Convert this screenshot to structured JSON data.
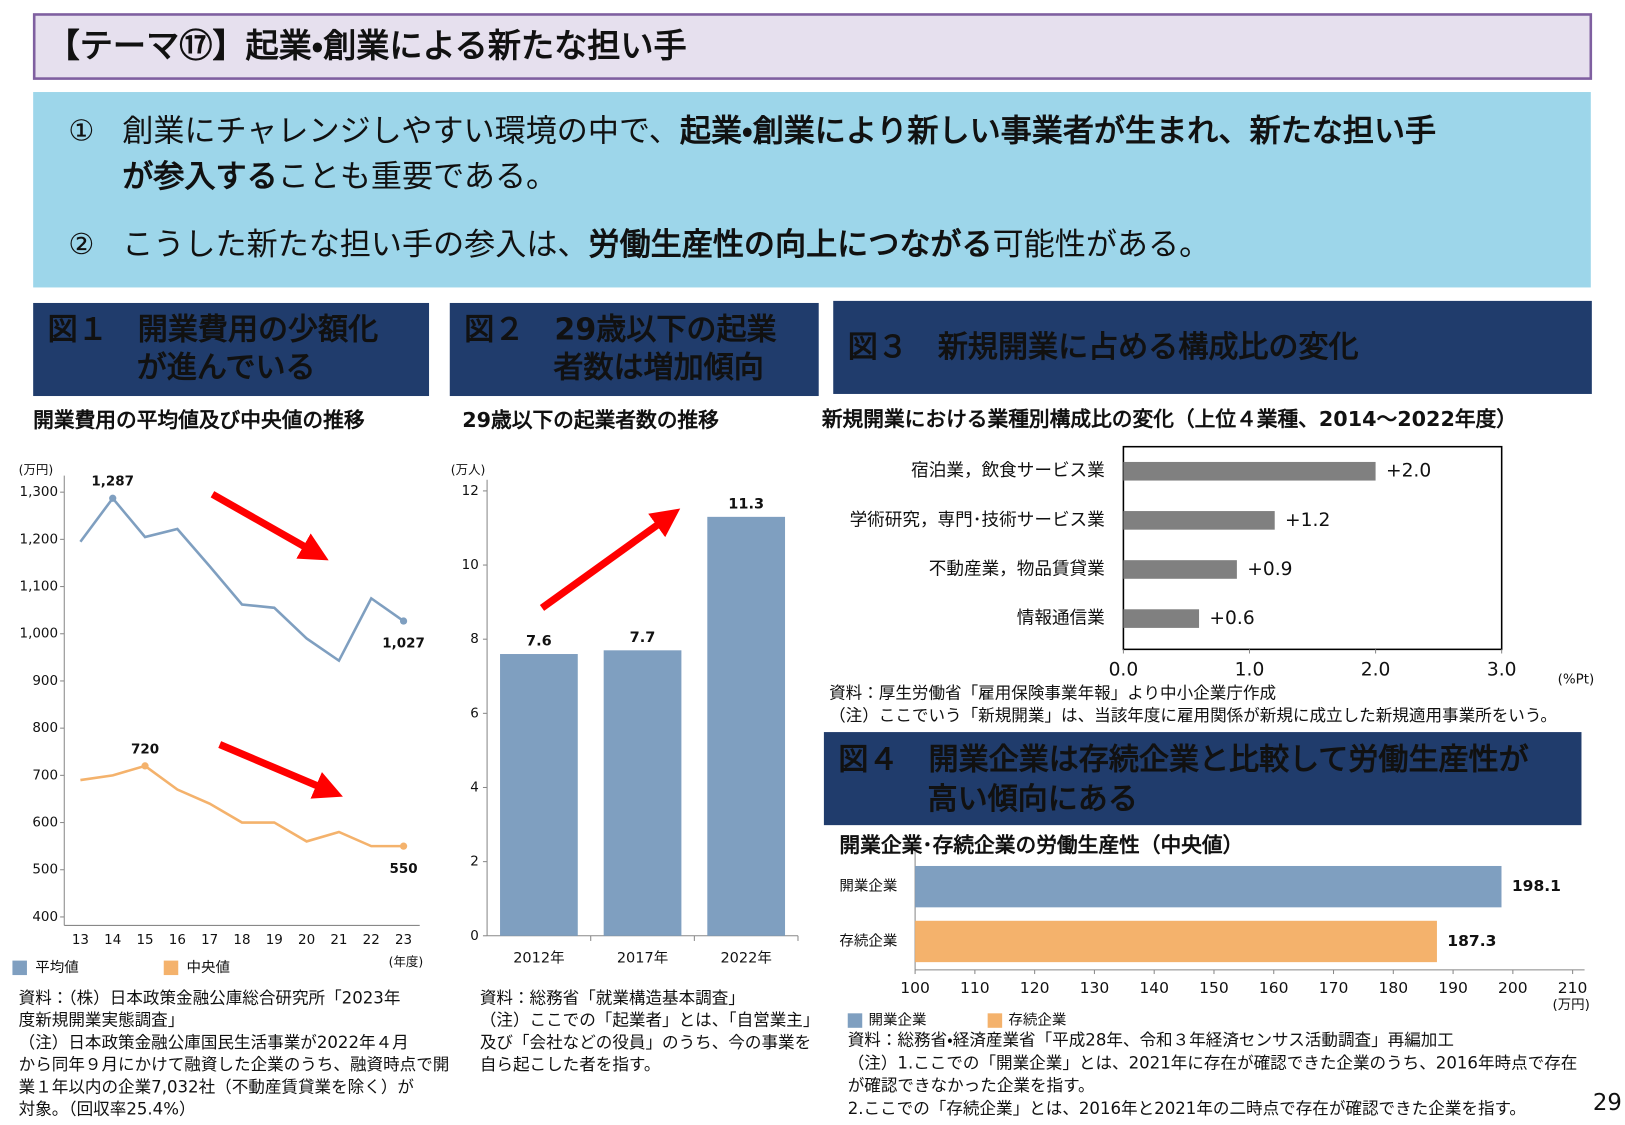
{
  "header": {
    "title": "【テーマ⑰】起業・創業による新たな担い手"
  },
  "points": [
    {
      "marker": "①",
      "lines": [
        [
          {
            "text": "創業にチャレンジしやすい環境の中で、",
            "bold": false
          },
          {
            "text": "起業・創業により新しい事業者が生まれ、新たな担い手",
            "bold": true
          }
        ],
        [
          {
            "text": "が参入する",
            "bold": true
          },
          {
            "text": "ことも重要である。",
            "bold": false
          }
        ]
      ]
    },
    {
      "marker": "②",
      "lines": [
        [
          {
            "text": "こうした新たな担い手の参入は、",
            "bold": false
          },
          {
            "text": "労働生産性の向上につながる",
            "bold": true
          },
          {
            "text": "可能性がある。",
            "bold": false
          }
        ]
      ]
    }
  ],
  "chart_data": [
    {
      "type": "line",
      "heading": [
        "図１　開業費用の少額化",
        "が進んでいる"
      ],
      "title": "開業費用の平均値及び中央値の推移",
      "y_unit": "(万円)",
      "x_unit": "(年度)",
      "categories": [
        "13",
        "14",
        "15",
        "16",
        "17",
        "18",
        "19",
        "20",
        "21",
        "22",
        "23"
      ],
      "series": [
        {
          "name": "平均値",
          "color": "#7f9fc0",
          "values": [
            1195,
            1287,
            1205,
            1222,
            1143,
            1062,
            1055,
            990,
            943,
            1075,
            1027
          ],
          "value_labels": [
            null,
            "1,287",
            null,
            null,
            null,
            null,
            null,
            null,
            null,
            null,
            "1,027"
          ]
        },
        {
          "name": "中央値",
          "color": "#f4b26c",
          "values": [
            690,
            700,
            720,
            670,
            640,
            600,
            600,
            560,
            580,
            550,
            550
          ],
          "value_labels": [
            null,
            null,
            "720",
            null,
            null,
            null,
            null,
            null,
            null,
            null,
            "550"
          ]
        }
      ],
      "ylim": [
        382,
        1335
      ],
      "yticks": [
        400,
        500,
        600,
        700,
        800,
        900,
        {
          "value": 1000,
          "label": "1,000"
        },
        {
          "value": 1100,
          "label": "1,100"
        },
        {
          "value": 1200,
          "label": "1,200"
        },
        {
          "value": 1300,
          "label": "1,300"
        }
      ],
      "grid": false,
      "legend": "bottom-left",
      "notes": [
        "資料：（株）日本政策金融公庫総合研究所「2023年",
        "度新規開業実態調査」",
        "（注）日本政策金融公庫国民生活事業が2022年４月",
        "から同年９月にかけて融資した企業のうち、融資時点で開",
        "業１年以内の企業7,032社（不動産賃貸業を除く）が",
        "対象。（回収率25.4%）"
      ]
    },
    {
      "type": "bar",
      "heading": [
        "図２　29歳以下の起業",
        "者数は増加傾向"
      ],
      "title": "29歳以下の起業者数の推移",
      "y_unit": "(万人)",
      "categories": [
        "2012年",
        "2017年",
        "2022年"
      ],
      "values": [
        7.6,
        7.7,
        11.3
      ],
      "color": "#7f9fc0",
      "data_labels": true,
      "ylim": [
        0,
        12.3
      ],
      "yticks": [
        0,
        2,
        4,
        6,
        8,
        10,
        12
      ],
      "grid": false,
      "notes": [
        "資料：総務省「就業構造基本調査」",
        "（注）ここでの「起業者」とは、「自営業主」",
        "及び「会社などの役員」のうち、今の事業を",
        "自ら起こした者を指す。"
      ]
    },
    {
      "type": "barh",
      "heading": [
        "図３　新規開業に占める構成比の変化"
      ],
      "title": "新規開業における業種別構成比の変化（上位４業種、2014～2022年度）",
      "x_unit": "(%Pt)",
      "categories": [
        "宿泊業，飲食サービス業",
        "学術研究，専門･技術サービス業",
        "不動産業，物品賃貸業",
        "情報通信業"
      ],
      "values": [
        2.0,
        1.2,
        0.9,
        0.6
      ],
      "value_labels": [
        "+2.0",
        "+1.2",
        "+0.9",
        "+0.6"
      ],
      "color": "#808080",
      "data_labels": true,
      "xlim": [
        0,
        3
      ],
      "xticks": [
        {
          "value": 0,
          "label": "0.0"
        },
        {
          "value": 1,
          "label": "1.0"
        },
        {
          "value": 2,
          "label": "2.0"
        },
        {
          "value": 3,
          "label": "3.0"
        }
      ],
      "grid": false,
      "notes": [
        "資料：厚生労働省「雇用保険事業年報」より中小企業庁作成",
        "（注）ここでいう「新規開業」は、当該年度に雇用関係が新規に成立した新規適用事業所をいう。"
      ]
    },
    {
      "type": "barh",
      "heading": [
        "図４　開業企業は存続企業と比較して労働生産性が",
        "高い傾向にある"
      ],
      "title": "開業企業･存続企業の労働生産性（中央値）",
      "x_unit": "(万円)",
      "categories": [
        "開業企業",
        "存続企業"
      ],
      "series": [
        {
          "name": "開業企業",
          "color": "#7f9fc0",
          "values": [
            198.1,
            null
          ]
        },
        {
          "name": "存続企業",
          "color": "#f4b26c",
          "values": [
            null,
            187.3
          ]
        }
      ],
      "data_labels": true,
      "xlim": [
        100,
        212
      ],
      "xticks": [
        100,
        110,
        120,
        130,
        140,
        150,
        160,
        170,
        180,
        190,
        200,
        210
      ],
      "grid": false,
      "legend": "bottom-left",
      "notes": [
        "資料：総務省・経済産業省「平成28年、令和３年経済センサス活動調査」再編加工",
        "（注）1.ここでの「開業企業」とは、2021年に存在が確認できた企業のうち、2016年時点で存在",
        "が確認できなかった企業を指す。",
        "2.ここでの「存続企業」とは、2016年と2021年の二時点で存在が確認できた企業を指す。"
      ]
    }
  ],
  "page_number": "29"
}
